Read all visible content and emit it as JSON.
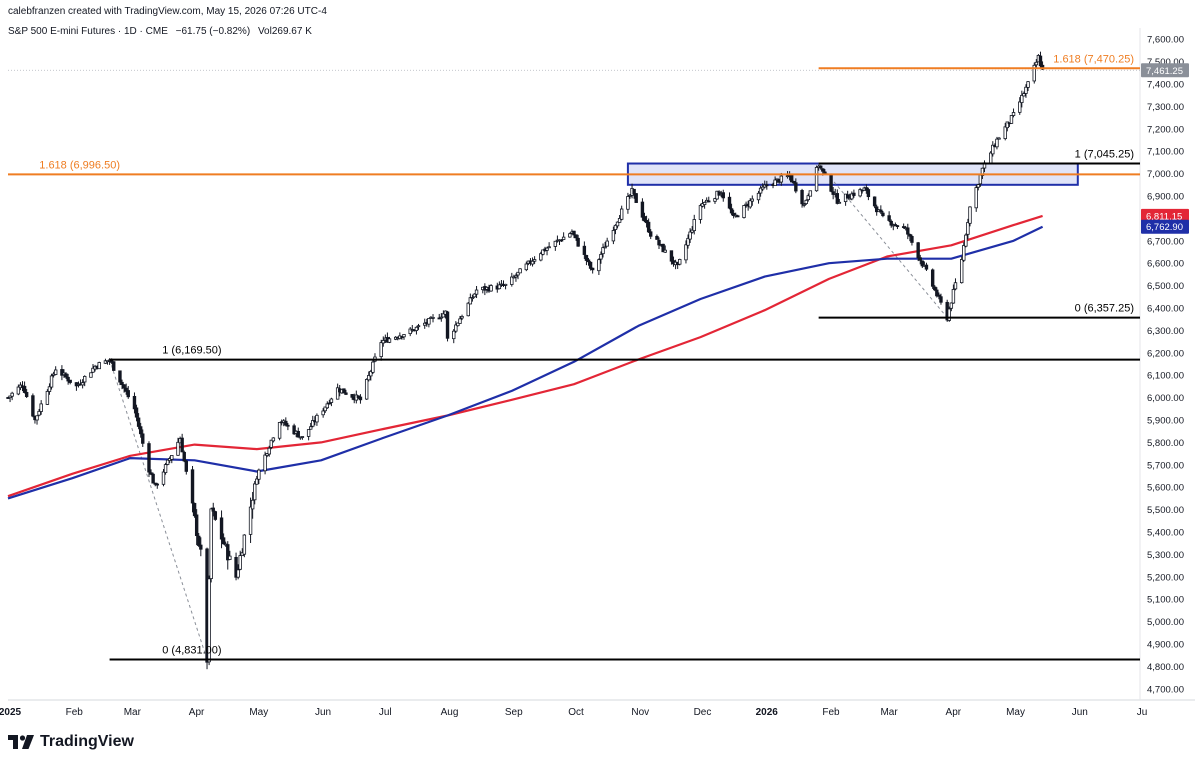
{
  "header": {
    "credit": "calebfranzen created with TradingView.com, May 15, 2026 07:26 UTC-4",
    "symbol": "S&P 500 E-mini Futures · 1D · CME",
    "change": "−61.75 (−0.82%)",
    "volume_label": "Vol",
    "volume": "269.67 K"
  },
  "brand": {
    "name": "TradingView",
    "icon": "tradingview-logo-icon"
  },
  "colors": {
    "candle": "#131722",
    "ma_red": "#e32636",
    "ma_blue": "#1f2fa8",
    "fib_orange": "#ef7d22",
    "box_fill": "#c7cdf2",
    "box_stroke": "#1f2fa8",
    "level_black": "#000000"
  },
  "chart_data": {
    "type": "candlestick",
    "title": "S&P 500 E-mini Futures · 1D · CME",
    "y_axis": {
      "ylim": [
        4650,
        7650
      ],
      "ticks": [
        "7,600.00",
        "7,500.00",
        "7,400.00",
        "7,300.00",
        "7,200.00",
        "7,100.00",
        "7,000.00",
        "6,900.00",
        "6,800.00",
        "6,700.00",
        "6,600.00",
        "6,500.00",
        "6,400.00",
        "6,300.00",
        "6,200.00",
        "6,100.00",
        "6,000.00",
        "5,900.00",
        "5,800.00",
        "5,700.00",
        "5,600.00",
        "5,500.00",
        "5,400.00",
        "5,300.00",
        "5,200.00",
        "5,100.00",
        "5,000.00",
        "4,900.00",
        "4,800.00",
        "4,700.00"
      ],
      "position": "right"
    },
    "x_axis": {
      "xlim": [
        "2025-01-01",
        "2026-07-01"
      ],
      "ticks": [
        {
          "date": "2025-01-01",
          "label": "2025",
          "bold": true
        },
        {
          "date": "2025-02-01",
          "label": "Feb"
        },
        {
          "date": "2025-03-01",
          "label": "Mar"
        },
        {
          "date": "2025-04-01",
          "label": "Apr"
        },
        {
          "date": "2025-05-01",
          "label": "May"
        },
        {
          "date": "2025-06-01",
          "label": "Jun"
        },
        {
          "date": "2025-07-01",
          "label": "Jul"
        },
        {
          "date": "2025-08-01",
          "label": "Aug"
        },
        {
          "date": "2025-09-01",
          "label": "Sep"
        },
        {
          "date": "2025-10-01",
          "label": "Oct"
        },
        {
          "date": "2025-11-01",
          "label": "Nov"
        },
        {
          "date": "2025-12-01",
          "label": "Dec"
        },
        {
          "date": "2026-01-01",
          "label": "2026",
          "bold": true
        },
        {
          "date": "2026-02-01",
          "label": "Feb"
        },
        {
          "date": "2026-03-01",
          "label": "Mar"
        },
        {
          "date": "2026-04-01",
          "label": "Apr"
        },
        {
          "date": "2026-05-01",
          "label": "May"
        },
        {
          "date": "2026-06-01",
          "label": "Jun"
        },
        {
          "date": "2026-07-01",
          "label": "Ju"
        }
      ]
    },
    "price_path": [
      [
        "2025-01-01",
        6000
      ],
      [
        "2025-01-08",
        6060
      ],
      [
        "2025-01-14",
        5900
      ],
      [
        "2025-01-24",
        6130
      ],
      [
        "2025-02-03",
        6050
      ],
      [
        "2025-02-12",
        6140
      ],
      [
        "2025-02-19",
        6169.5
      ],
      [
        "2025-03-03",
        5950
      ],
      [
        "2025-03-10",
        5680
      ],
      [
        "2025-03-13",
        5600
      ],
      [
        "2025-03-25",
        5820
      ],
      [
        "2025-04-04",
        5300
      ],
      [
        "2025-04-07",
        4831
      ],
      [
        "2025-04-09",
        5500
      ],
      [
        "2025-04-21",
        5200
      ],
      [
        "2025-05-01",
        5650
      ],
      [
        "2025-05-12",
        5900
      ],
      [
        "2025-05-23",
        5820
      ],
      [
        "2025-06-09",
        6040
      ],
      [
        "2025-06-20",
        5990
      ],
      [
        "2025-06-30",
        6250
      ],
      [
        "2025-07-15",
        6300
      ],
      [
        "2025-07-31",
        6380
      ],
      [
        "2025-08-01",
        6260
      ],
      [
        "2025-08-15",
        6480
      ],
      [
        "2025-08-29",
        6500
      ],
      [
        "2025-09-15",
        6650
      ],
      [
        "2025-09-30",
        6740
      ],
      [
        "2025-10-10",
        6560
      ],
      [
        "2025-10-20",
        6760
      ],
      [
        "2025-10-29",
        6920
      ],
      [
        "2025-11-07",
        6730
      ],
      [
        "2025-11-20",
        6580
      ],
      [
        "2025-12-01",
        6860
      ],
      [
        "2025-12-11",
        6920
      ],
      [
        "2025-12-17",
        6800
      ],
      [
        "2026-01-02",
        6950
      ],
      [
        "2026-01-13",
        6990
      ],
      [
        "2026-01-20",
        6860
      ],
      [
        "2026-01-27",
        7040
      ],
      [
        "2026-02-05",
        6880
      ],
      [
        "2026-02-18",
        6930
      ],
      [
        "2026-02-27",
        6800
      ],
      [
        "2026-03-10",
        6750
      ],
      [
        "2026-03-20",
        6560
      ],
      [
        "2026-03-30",
        6357.25
      ],
      [
        "2026-04-06",
        6620
      ],
      [
        "2026-04-10",
        6850
      ],
      [
        "2026-04-16",
        7020
      ],
      [
        "2026-04-23",
        7150
      ],
      [
        "2026-05-01",
        7260
      ],
      [
        "2026-05-08",
        7400
      ],
      [
        "2026-05-13",
        7520
      ],
      [
        "2026-05-15",
        7461.25
      ]
    ],
    "series": [
      {
        "name": "Moving average (red)",
        "color": "#e32636",
        "x": [
          "2025-01-01",
          "2025-02-01",
          "2025-03-01",
          "2025-04-01",
          "2025-05-01",
          "2025-06-01",
          "2025-07-01",
          "2025-08-01",
          "2025-09-01",
          "2025-10-01",
          "2025-11-01",
          "2025-12-01",
          "2026-01-01",
          "2026-02-01",
          "2026-03-01",
          "2026-04-01",
          "2026-05-01",
          "2026-05-15"
        ],
        "values": [
          5560,
          5660,
          5740,
          5790,
          5770,
          5800,
          5860,
          5920,
          5990,
          6060,
          6170,
          6270,
          6390,
          6530,
          6630,
          6680,
          6770,
          6811.15
        ]
      },
      {
        "name": "Moving average (blue)",
        "color": "#1f2fa8",
        "x": [
          "2025-01-01",
          "2025-02-01",
          "2025-03-01",
          "2025-04-01",
          "2025-05-01",
          "2025-06-01",
          "2025-07-01",
          "2025-08-01",
          "2025-09-01",
          "2025-10-01",
          "2025-11-01",
          "2025-12-01",
          "2026-01-01",
          "2026-02-01",
          "2026-03-01",
          "2026-04-01",
          "2026-05-01",
          "2026-05-15"
        ],
        "values": [
          5550,
          5640,
          5730,
          5720,
          5670,
          5720,
          5820,
          5920,
          6030,
          6160,
          6320,
          6440,
          6540,
          6600,
          6620,
          6620,
          6700,
          6762.9
        ]
      }
    ],
    "levels": [
      {
        "label": "1 (6,169.50)",
        "value": 6169.5,
        "color": "#000000",
        "from": "2025-02-19",
        "to": "2026-07-01",
        "label_side": "left"
      },
      {
        "label": "0 (4,831.00)",
        "value": 4831,
        "color": "#000000",
        "from": "2025-02-19",
        "to": "2026-07-01",
        "label_side": "left"
      },
      {
        "label": "1.618 (6,996.50)",
        "value": 6996.5,
        "color": "#ef7d22",
        "from": "2025-01-01",
        "to": "2026-07-01",
        "label_side": "left"
      },
      {
        "label": "1 (7,045.25)",
        "value": 7045.25,
        "color": "#000000",
        "from": "2026-01-27",
        "to": "2026-07-01",
        "label_side": "right"
      },
      {
        "label": "0 (6,357.25)",
        "value": 6357.25,
        "color": "#000000",
        "from": "2026-01-27",
        "to": "2026-07-01",
        "label_side": "right"
      },
      {
        "label": "1.618 (7,470.25)",
        "value": 7470.25,
        "color": "#ef7d22",
        "from": "2026-01-27",
        "to": "2026-07-01",
        "label_side": "right"
      }
    ],
    "zone": {
      "from": "2025-10-27",
      "to": "2026-06-01",
      "low": 6950,
      "high": 7045
    },
    "swing_lines": [
      {
        "from": [
          "2025-02-19",
          6169.5
        ],
        "to": [
          "2025-04-07",
          4831
        ]
      },
      {
        "from": [
          "2026-01-27",
          7045.25
        ],
        "to": [
          "2026-03-30",
          6357.25
        ]
      }
    ],
    "price_badges": [
      {
        "label": "7,461.25",
        "value": 7461.25,
        "color": "#8a8f98"
      },
      {
        "label": "6,811.15",
        "value": 6811.15,
        "color": "#e32636"
      },
      {
        "label": "6,762.90",
        "value": 6762.9,
        "color": "#1f2fa8"
      }
    ],
    "last_price": 7461.25,
    "grid": false,
    "legend": "none"
  }
}
